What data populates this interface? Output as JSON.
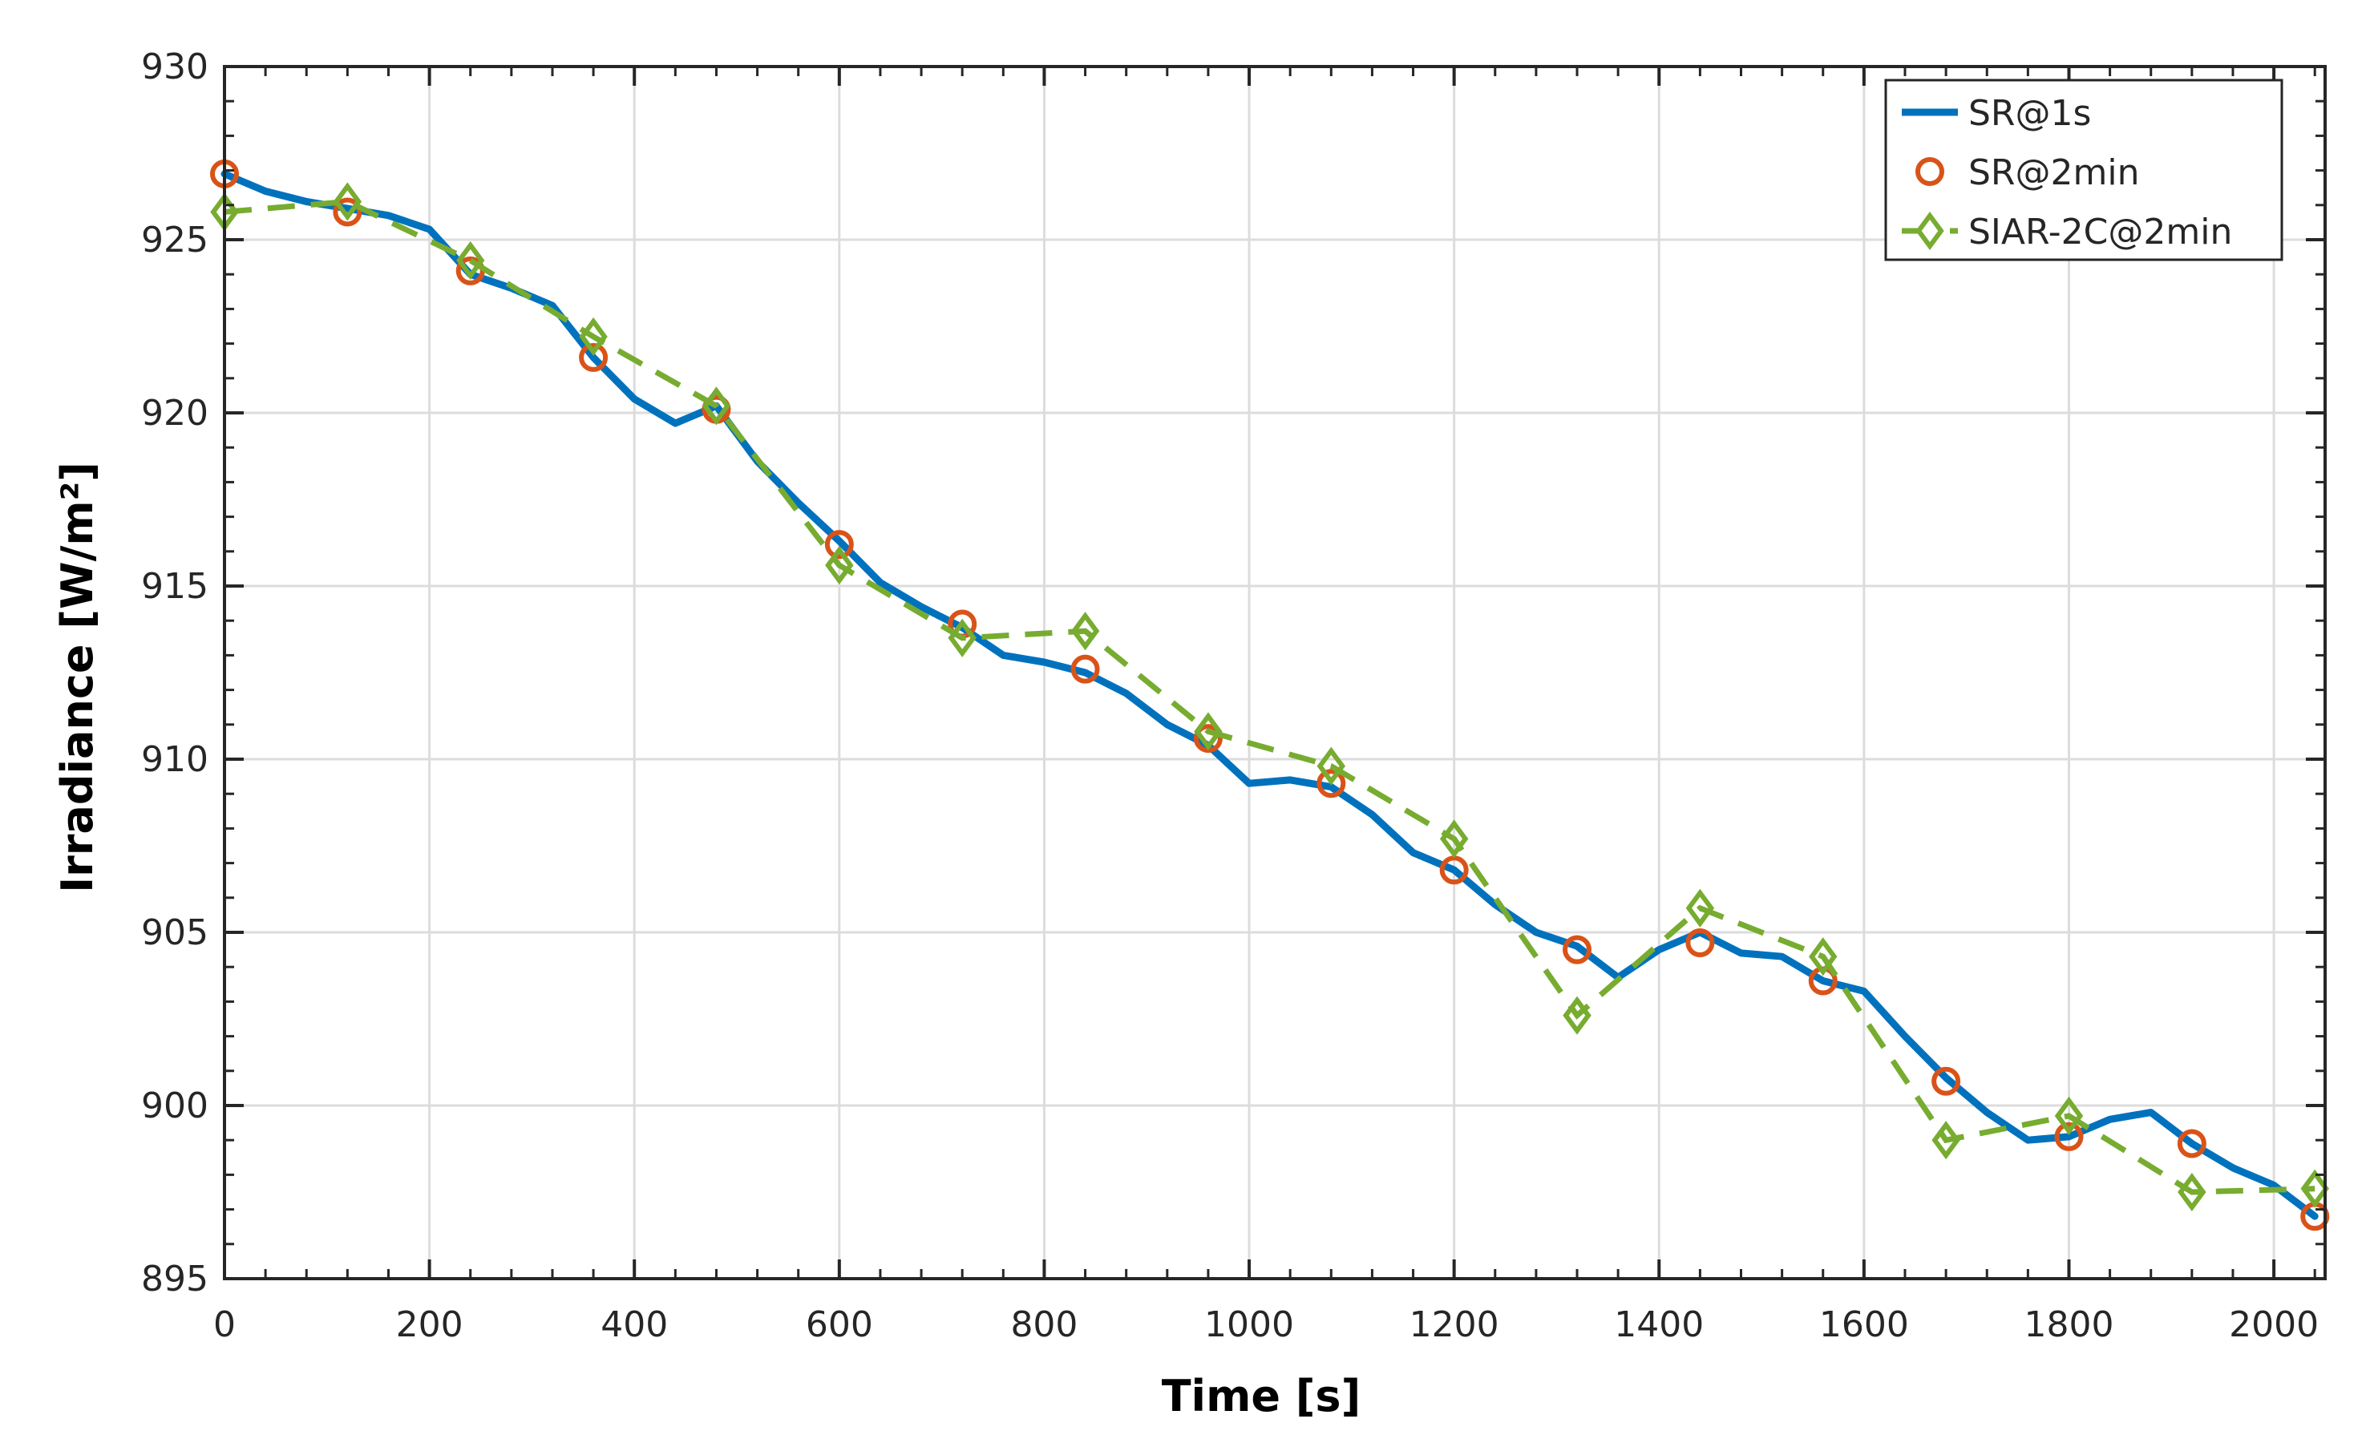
{
  "chart_data": {
    "type": "line",
    "title": "",
    "xlabel": "Time [s]",
    "ylabel": "Irradiance [W/m²]",
    "xlim": [
      0,
      2050
    ],
    "ylim": [
      895,
      930
    ],
    "xticks": [
      0,
      200,
      400,
      600,
      800,
      1000,
      1200,
      1400,
      1600,
      1800,
      2000
    ],
    "yticks": [
      895,
      900,
      905,
      910,
      915,
      920,
      925,
      930
    ],
    "grid": true,
    "legend_position": "top-right",
    "series": [
      {
        "name": "SR@1s",
        "style": "solid line",
        "color": "#0072BD",
        "x": [
          0,
          40,
          80,
          120,
          160,
          200,
          240,
          280,
          320,
          360,
          400,
          440,
          480,
          520,
          560,
          600,
          640,
          680,
          720,
          760,
          800,
          840,
          880,
          920,
          960,
          1000,
          1040,
          1080,
          1120,
          1160,
          1200,
          1240,
          1280,
          1320,
          1360,
          1400,
          1440,
          1480,
          1520,
          1560,
          1600,
          1640,
          1680,
          1720,
          1760,
          1800,
          1840,
          1880,
          1920,
          1960,
          2000,
          2040
        ],
        "y": [
          926.9,
          926.4,
          926.1,
          925.9,
          925.7,
          925.3,
          924.0,
          923.6,
          923.1,
          921.6,
          920.4,
          919.7,
          920.2,
          918.6,
          917.4,
          916.3,
          915.1,
          914.4,
          913.8,
          913.0,
          912.8,
          912.5,
          911.9,
          911.0,
          910.4,
          909.3,
          909.4,
          909.2,
          908.4,
          907.3,
          906.8,
          905.8,
          905.0,
          904.6,
          903.7,
          904.5,
          905.0,
          904.4,
          904.3,
          903.6,
          903.3,
          902.0,
          900.8,
          899.8,
          899.0,
          899.1,
          899.6,
          899.8,
          898.9,
          898.2,
          897.7,
          896.8
        ]
      },
      {
        "name": "SR@2min",
        "style": "circle markers",
        "color": "#D95319",
        "x": [
          0,
          120,
          240,
          360,
          480,
          600,
          720,
          840,
          960,
          1080,
          1200,
          1320,
          1440,
          1560,
          1680,
          1800,
          1920,
          2040
        ],
        "y": [
          926.9,
          925.8,
          924.1,
          921.6,
          920.1,
          916.2,
          913.9,
          912.6,
          910.6,
          909.3,
          906.8,
          904.5,
          904.7,
          903.6,
          900.7,
          899.1,
          898.9,
          896.8
        ]
      },
      {
        "name": "SIAR-2C@2min",
        "style": "dashed line with diamond markers",
        "color": "#77AC30",
        "x": [
          0,
          120,
          240,
          360,
          480,
          600,
          720,
          840,
          960,
          1080,
          1200,
          1320,
          1440,
          1560,
          1680,
          1800,
          1920,
          2040
        ],
        "y": [
          925.8,
          926.1,
          924.4,
          922.2,
          920.2,
          915.6,
          913.5,
          913.7,
          910.8,
          909.8,
          907.7,
          902.6,
          905.7,
          904.3,
          899.0,
          899.7,
          897.5,
          897.6
        ]
      }
    ]
  }
}
